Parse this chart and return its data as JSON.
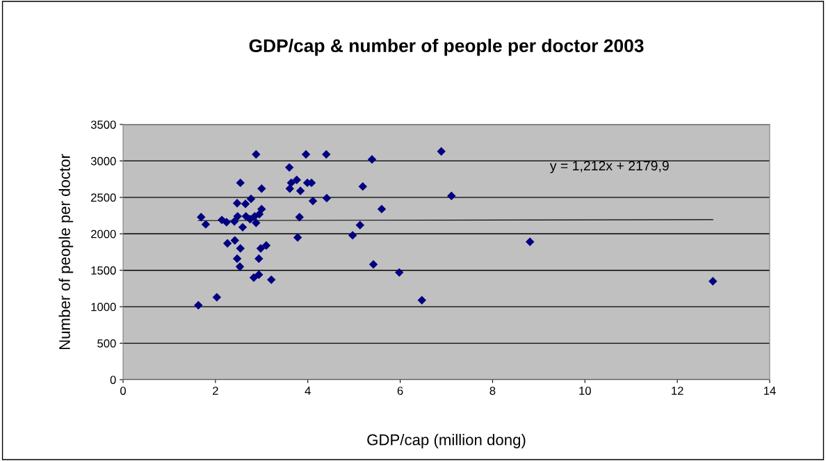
{
  "chart_data": {
    "type": "scatter",
    "title": "GDP/cap & number of people per doctor 2003",
    "xlabel": "GDP/cap (million dong)",
    "ylabel": "Number of people per doctor",
    "xlim": [
      0,
      14
    ],
    "xticks": [
      0,
      2,
      4,
      6,
      8,
      10,
      12,
      14
    ],
    "ylim": [
      0,
      3500
    ],
    "yticks": [
      0,
      500,
      1000,
      1500,
      2000,
      2500,
      3000,
      3500
    ],
    "grid": "y",
    "legend": false,
    "marker": "diamond",
    "annotations": [
      "y = 1,212x + 2179,9"
    ],
    "series": [
      {
        "color": "#000080",
        "x": [
          2.88,
          3.96,
          3.6,
          2.54,
          3.0,
          3.76,
          3.64,
          3.61,
          3.84,
          3.99,
          4.08,
          4.11,
          2.47,
          2.65,
          2.77,
          3.0,
          2.95,
          1.69,
          1.79,
          2.14,
          2.24,
          2.41,
          2.48,
          2.66,
          2.75,
          2.85,
          2.88,
          2.59,
          3.82,
          2.26,
          2.42,
          2.54,
          2.47,
          2.53,
          2.98,
          3.1,
          2.94,
          3.78,
          2.83,
          2.94,
          3.21,
          2.03,
          1.63,
          4.4,
          5.39,
          6.89,
          7.11,
          4.41,
          5.19,
          5.6,
          5.13,
          4.97,
          5.42,
          5.98,
          6.47,
          8.81,
          12.77
        ],
        "values": [
          3090,
          3090,
          2910,
          2700,
          2620,
          2740,
          2700,
          2620,
          2590,
          2700,
          2700,
          2450,
          2420,
          2410,
          2480,
          2340,
          2270,
          2230,
          2130,
          2190,
          2160,
          2170,
          2240,
          2240,
          2200,
          2240,
          2150,
          2090,
          2230,
          1870,
          1910,
          1800,
          1660,
          1550,
          1800,
          1840,
          1660,
          1950,
          1400,
          1440,
          1370,
          1130,
          1020,
          3090,
          3020,
          3130,
          2520,
          2490,
          2650,
          2340,
          2120,
          1980,
          1580,
          1470,
          1090,
          1890,
          1350
        ]
      },
      {
        "type": "line",
        "color": "#000000",
        "x": [
          1.63,
          12.77
        ],
        "values": [
          2182,
          2195
        ],
        "marker": "none"
      }
    ]
  }
}
